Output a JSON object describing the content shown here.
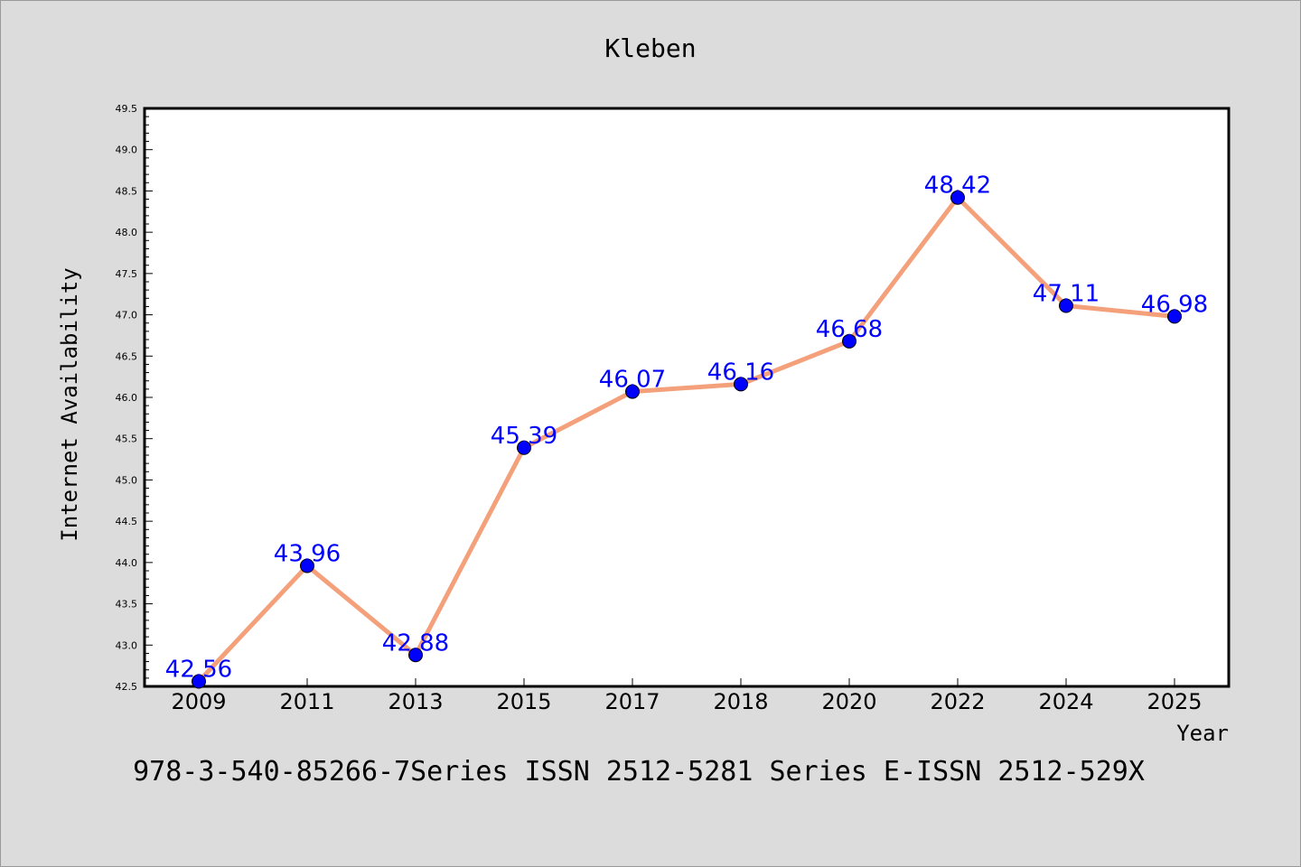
{
  "chart_data": {
    "type": "line",
    "title": "Kleben",
    "xlabel": "Year",
    "ylabel": "Internet Availability",
    "categories": [
      "2009",
      "2011",
      "2013",
      "2015",
      "2017",
      "2018",
      "2020",
      "2022",
      "2024",
      "2025"
    ],
    "series": [
      {
        "values": [
          42.56,
          43.96,
          42.88,
          45.39,
          46.07,
          46.16,
          46.68,
          48.42,
          47.11,
          46.98
        ],
        "labels": [
          "42.56",
          "43.96",
          "42.88",
          "45.39",
          "46.07",
          "46.16",
          "46.68",
          "48.42",
          "47.11",
          "46.98"
        ],
        "line_color": "#f4a07a",
        "marker_color": "#0000ff",
        "label_color": "#0000ff"
      }
    ],
    "ylim": [
      42.5,
      49.5
    ],
    "yticks": [
      "42.5",
      "43.0",
      "43.5",
      "44.0",
      "44.5",
      "45.0",
      "45.5",
      "46.0",
      "46.5",
      "47.0",
      "47.5",
      "48.0",
      "48.5",
      "49.0",
      "49.5"
    ],
    "grid": false,
    "legend": "none"
  },
  "footer": {
    "text": "978-3-540-85266-7Series ISSN 2512-5281 Series E-ISSN 2512-529X"
  }
}
